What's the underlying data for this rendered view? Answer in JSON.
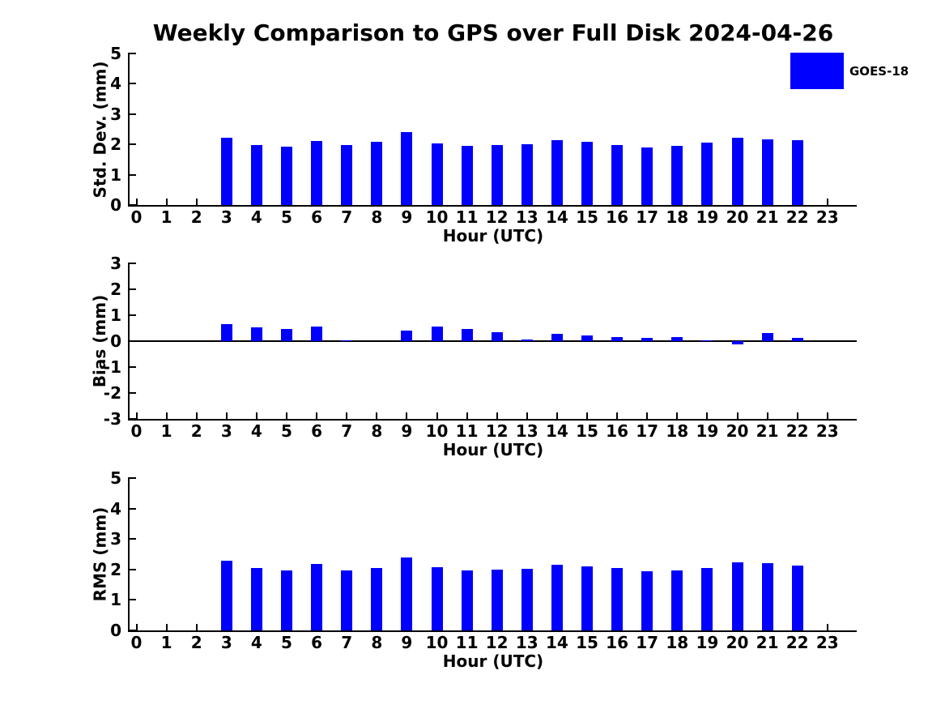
{
  "figure": {
    "title": "Weekly Comparison to GPS over Full Disk 2024-04-26",
    "legend": {
      "label": "GOES-18",
      "color": "#0000FF"
    },
    "background_color": "#FFFFFF",
    "axis_color": "#000000"
  },
  "chart_data": [
    {
      "type": "bar",
      "name": "std-dev-by-hour",
      "title": "",
      "xlabel": "Hour (UTC)",
      "ylabel": "Std. Dev. (mm)",
      "series_name": "GOES-18",
      "color": "#0000FF",
      "grid": false,
      "ylim": [
        0,
        5
      ],
      "yticks": [
        0,
        1,
        2,
        3,
        4,
        5
      ],
      "categories": [
        "0",
        "1",
        "2",
        "3",
        "4",
        "5",
        "6",
        "7",
        "8",
        "9",
        "10",
        "11",
        "12",
        "13",
        "14",
        "15",
        "16",
        "17",
        "18",
        "19",
        "20",
        "21",
        "22",
        "23"
      ],
      "values": [
        null,
        null,
        null,
        2.22,
        1.98,
        1.93,
        2.11,
        1.98,
        2.08,
        2.4,
        2.03,
        1.96,
        1.98,
        2.01,
        2.14,
        2.09,
        1.98,
        1.9,
        1.95,
        2.06,
        2.22,
        2.17,
        2.13,
        null
      ]
    },
    {
      "type": "bar",
      "name": "bias-by-hour",
      "title": "",
      "xlabel": "Hour (UTC)",
      "ylabel": "Bias (mm)",
      "series_name": "GOES-18",
      "color": "#0000FF",
      "grid": false,
      "zero_line": true,
      "ylim": [
        -3,
        3
      ],
      "yticks": [
        -3,
        -2,
        -1,
        0,
        1,
        2,
        3
      ],
      "categories": [
        "0",
        "1",
        "2",
        "3",
        "4",
        "5",
        "6",
        "7",
        "8",
        "9",
        "10",
        "11",
        "12",
        "13",
        "14",
        "15",
        "16",
        "17",
        "18",
        "19",
        "20",
        "21",
        "22",
        "23"
      ],
      "values": [
        null,
        null,
        null,
        0.65,
        0.52,
        0.48,
        0.56,
        0.02,
        0.0,
        0.41,
        0.55,
        0.46,
        0.33,
        0.05,
        0.28,
        0.22,
        0.15,
        0.12,
        0.17,
        0.02,
        -0.12,
        0.3,
        0.12,
        null
      ]
    },
    {
      "type": "bar",
      "name": "rms-by-hour",
      "title": "",
      "xlabel": "Hour (UTC)",
      "ylabel": "RMS (mm)",
      "series_name": "GOES-18",
      "color": "#0000FF",
      "grid": false,
      "ylim": [
        0,
        5
      ],
      "yticks": [
        0,
        1,
        2,
        3,
        4,
        5
      ],
      "categories": [
        "0",
        "1",
        "2",
        "3",
        "4",
        "5",
        "6",
        "7",
        "8",
        "9",
        "10",
        "11",
        "12",
        "13",
        "14",
        "15",
        "16",
        "17",
        "18",
        "19",
        "20",
        "21",
        "22",
        "23"
      ],
      "values": [
        null,
        null,
        null,
        2.28,
        2.04,
        1.96,
        2.17,
        1.97,
        2.06,
        2.4,
        2.07,
        1.98,
        1.99,
        2.01,
        2.16,
        2.09,
        2.04,
        1.94,
        1.96,
        2.05,
        2.23,
        2.2,
        2.13,
        null
      ]
    }
  ]
}
